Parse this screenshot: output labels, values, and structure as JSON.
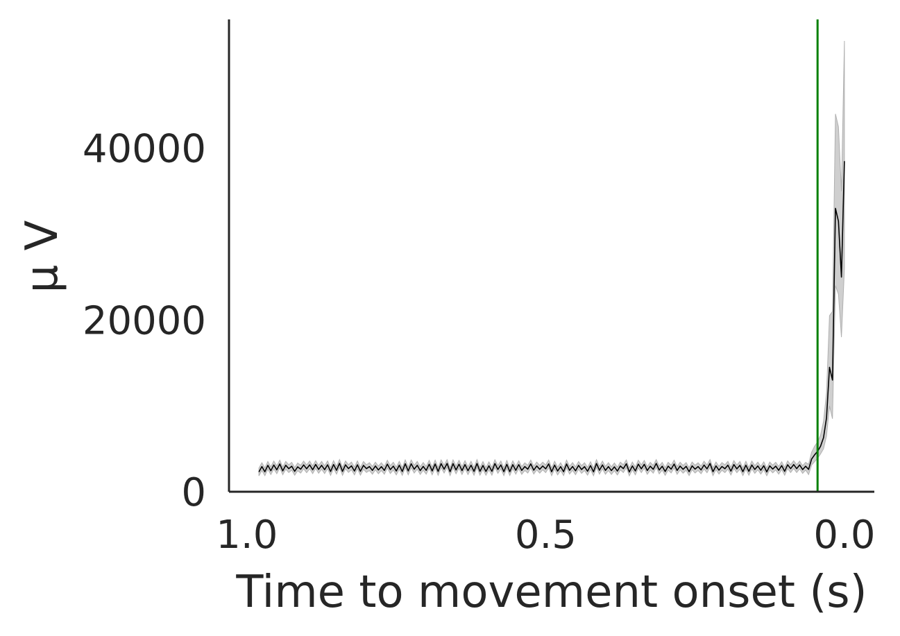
{
  "chart_data": {
    "type": "line",
    "title": "",
    "xlabel": "Time to movement onset (s)",
    "ylabel": "μ V",
    "x_inverted": true,
    "xlim": [
      1.03,
      -0.05
    ],
    "ylim": [
      0,
      55000
    ],
    "xticks": [
      {
        "value": 1.0,
        "label": "1.0"
      },
      {
        "value": 0.5,
        "label": "0.5"
      },
      {
        "value": 0.0,
        "label": "0.0"
      }
    ],
    "yticks": [
      {
        "value": 0,
        "label": "0"
      },
      {
        "value": 20000,
        "label": "20000"
      },
      {
        "value": 40000,
        "label": "40000"
      }
    ],
    "grid": false,
    "legend": "none",
    "vline": {
      "x": 0.045,
      "color": "#008000"
    },
    "baseline_segment": {
      "x_start": 0.98,
      "x_end": 0.06,
      "step": 0.005,
      "mean": 2750,
      "high": 3300,
      "low": 2300,
      "ci_halfwidth": 450
    },
    "series": [
      {
        "color": "#000000",
        "ci_color": "#bfbfbf",
        "points": [
          {
            "x": 0.06,
            "y": 2600,
            "lo": 2000,
            "hi": 3200
          },
          {
            "x": 0.055,
            "y": 3800,
            "lo": 3100,
            "hi": 4600
          },
          {
            "x": 0.05,
            "y": 4300,
            "lo": 3500,
            "hi": 5300
          },
          {
            "x": 0.045,
            "y": 4700,
            "lo": 3900,
            "hi": 5800
          },
          {
            "x": 0.04,
            "y": 5300,
            "lo": 4400,
            "hi": 6600
          },
          {
            "x": 0.035,
            "y": 6300,
            "lo": 5000,
            "hi": 8200
          },
          {
            "x": 0.03,
            "y": 8600,
            "lo": 6500,
            "hi": 11500
          },
          {
            "x": 0.025,
            "y": 14500,
            "lo": 10000,
            "hi": 20500
          },
          {
            "x": 0.02,
            "y": 13000,
            "lo": 8500,
            "hi": 21000
          },
          {
            "x": 0.015,
            "y": 33000,
            "lo": 24000,
            "hi": 44000
          },
          {
            "x": 0.01,
            "y": 31500,
            "lo": 23000,
            "hi": 42500
          },
          {
            "x": 0.005,
            "y": 25000,
            "lo": 18000,
            "hi": 35000
          },
          {
            "x": 0.0,
            "y": 38500,
            "lo": 26000,
            "hi": 52500
          }
        ]
      }
    ]
  }
}
